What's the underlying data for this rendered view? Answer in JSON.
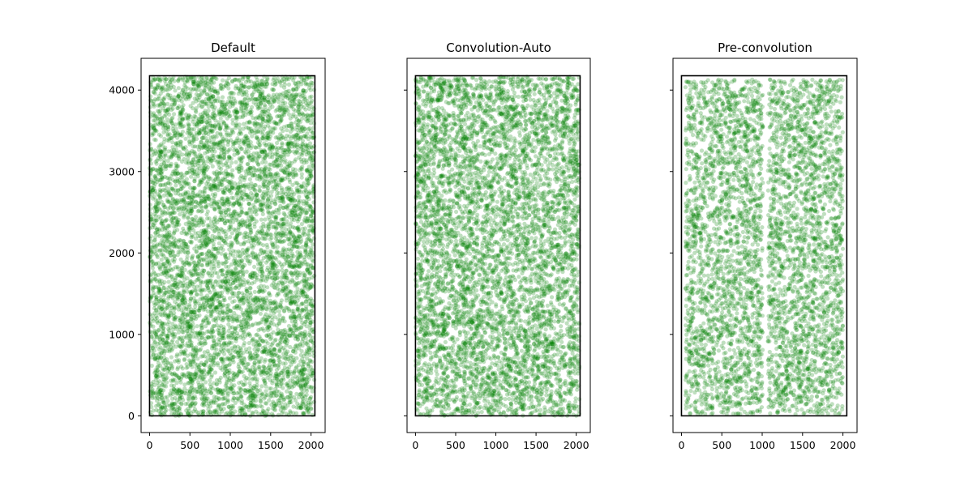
{
  "chart_data": [
    {
      "type": "scatter",
      "title": "Default",
      "xlim": [
        -105,
        2175
      ],
      "ylim": [
        -205,
        4390
      ],
      "x_ticks": [
        0,
        500,
        1000,
        1500,
        2000
      ],
      "y_ticks": [
        0,
        1000,
        2000,
        3000,
        4000
      ],
      "show_y_tick_labels": true,
      "boundary": {
        "x": [
          0,
          2048
        ],
        "y": [
          0,
          4176
        ]
      },
      "point_color": "#008000",
      "point_alpha": 0.25,
      "n_points": 6500,
      "x_range": [
        0,
        2040
      ],
      "y_range": [
        0,
        4165
      ],
      "gap_x": null
    },
    {
      "type": "scatter",
      "title": "Convolution-Auto",
      "xlim": [
        -105,
        2175
      ],
      "ylim": [
        -205,
        4390
      ],
      "x_ticks": [
        0,
        500,
        1000,
        1500,
        2000
      ],
      "y_ticks": [
        0,
        1000,
        2000,
        3000,
        4000
      ],
      "show_y_tick_labels": false,
      "boundary": {
        "x": [
          0,
          2048
        ],
        "y": [
          0,
          4176
        ]
      },
      "point_color": "#008000",
      "point_alpha": 0.25,
      "n_points": 6200,
      "x_range": [
        0,
        2040
      ],
      "y_range": [
        0,
        4165
      ],
      "gap_x": null
    },
    {
      "type": "scatter",
      "title": "Pre-convolution",
      "xlim": [
        -105,
        2175
      ],
      "ylim": [
        -205,
        4390
      ],
      "x_ticks": [
        0,
        500,
        1000,
        1500,
        2000
      ],
      "y_ticks": [
        0,
        1000,
        2000,
        3000,
        4000
      ],
      "show_y_tick_labels": false,
      "boundary": {
        "x": [
          0,
          2048
        ],
        "y": [
          0,
          4176
        ]
      },
      "point_color": "#008000",
      "point_alpha": 0.25,
      "n_points": 4800,
      "x_range": [
        50,
        2000
      ],
      "y_range": [
        20,
        4130
      ],
      "gap_x": [
        1010,
        1070
      ]
    }
  ]
}
